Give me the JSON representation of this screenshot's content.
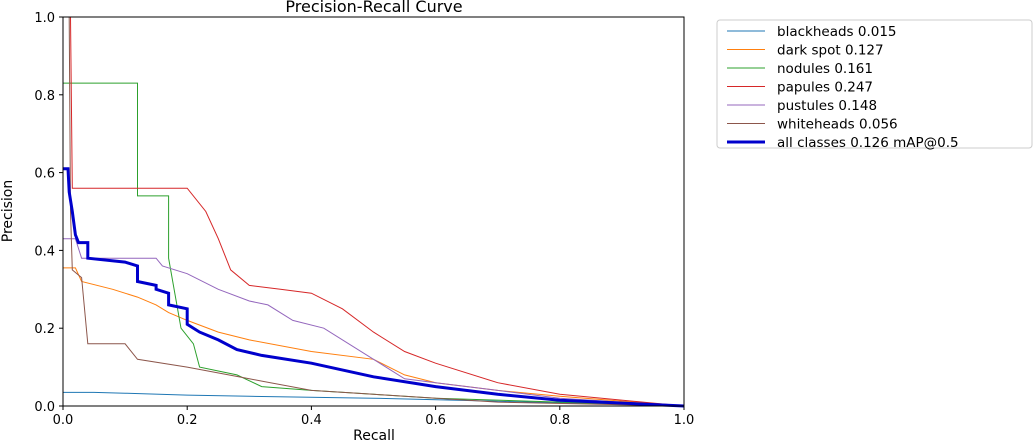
{
  "chart_data": {
    "type": "line",
    "title": "Precision-Recall Curve",
    "xlabel": "Recall",
    "ylabel": "Precision",
    "xlim": [
      0,
      1
    ],
    "ylim": [
      0,
      1
    ],
    "xticks": [
      "0.0",
      "0.2",
      "0.4",
      "0.6",
      "0.8",
      "1.0"
    ],
    "yticks": [
      "0.0",
      "0.2",
      "0.4",
      "0.6",
      "0.8",
      "1.0"
    ],
    "legend_position": "outside-top-right",
    "series": [
      {
        "name": "blackheads",
        "label": "blackheads 0.015",
        "color": "#1f77b4",
        "width": 1,
        "points": [
          [
            0,
            0.035
          ],
          [
            0.05,
            0.035
          ],
          [
            0.1,
            0.033
          ],
          [
            0.2,
            0.028
          ],
          [
            0.3,
            0.025
          ],
          [
            0.5,
            0.02
          ],
          [
            0.7,
            0.012
          ],
          [
            1.0,
            0.0
          ]
        ]
      },
      {
        "name": "dark spot",
        "label": "dark spot 0.127",
        "color": "#ff7f0e",
        "width": 1,
        "points": [
          [
            0,
            0.355
          ],
          [
            0.02,
            0.355
          ],
          [
            0.03,
            0.32
          ],
          [
            0.08,
            0.3
          ],
          [
            0.12,
            0.28
          ],
          [
            0.15,
            0.26
          ],
          [
            0.17,
            0.24
          ],
          [
            0.2,
            0.22
          ],
          [
            0.25,
            0.19
          ],
          [
            0.3,
            0.17
          ],
          [
            0.4,
            0.14
          ],
          [
            0.5,
            0.12
          ],
          [
            0.55,
            0.08
          ],
          [
            0.6,
            0.06
          ],
          [
            0.7,
            0.04
          ],
          [
            0.8,
            0.025
          ],
          [
            1.0,
            0.0
          ]
        ]
      },
      {
        "name": "nodules",
        "label": "nodules 0.161",
        "color": "#2ca02c",
        "width": 1,
        "points": [
          [
            0,
            0.83
          ],
          [
            0.12,
            0.83
          ],
          [
            0.12,
            0.54
          ],
          [
            0.17,
            0.54
          ],
          [
            0.17,
            0.38
          ],
          [
            0.19,
            0.2
          ],
          [
            0.21,
            0.16
          ],
          [
            0.22,
            0.1
          ],
          [
            0.25,
            0.09
          ],
          [
            0.28,
            0.08
          ],
          [
            0.32,
            0.05
          ],
          [
            0.4,
            0.04
          ],
          [
            0.5,
            0.03
          ],
          [
            0.6,
            0.02
          ],
          [
            0.8,
            0.01
          ],
          [
            1.0,
            0.0
          ]
        ]
      },
      {
        "name": "papules",
        "label": "papules 0.247",
        "color": "#d62728",
        "width": 1,
        "points": [
          [
            0.005,
            1.0
          ],
          [
            0.012,
            1.0
          ],
          [
            0.015,
            0.56
          ],
          [
            0.2,
            0.56
          ],
          [
            0.23,
            0.5
          ],
          [
            0.25,
            0.43
          ],
          [
            0.27,
            0.35
          ],
          [
            0.3,
            0.31
          ],
          [
            0.35,
            0.3
          ],
          [
            0.4,
            0.29
          ],
          [
            0.45,
            0.25
          ],
          [
            0.5,
            0.19
          ],
          [
            0.55,
            0.14
          ],
          [
            0.6,
            0.11
          ],
          [
            0.7,
            0.06
          ],
          [
            0.8,
            0.03
          ],
          [
            1.0,
            0.0
          ]
        ]
      },
      {
        "name": "pustules",
        "label": "pustules 0.148",
        "color": "#9467bd",
        "width": 1,
        "points": [
          [
            0,
            0.43
          ],
          [
            0.02,
            0.43
          ],
          [
            0.03,
            0.38
          ],
          [
            0.15,
            0.38
          ],
          [
            0.16,
            0.36
          ],
          [
            0.2,
            0.34
          ],
          [
            0.25,
            0.3
          ],
          [
            0.3,
            0.27
          ],
          [
            0.33,
            0.26
          ],
          [
            0.37,
            0.22
          ],
          [
            0.42,
            0.2
          ],
          [
            0.5,
            0.12
          ],
          [
            0.55,
            0.07
          ],
          [
            0.6,
            0.06
          ],
          [
            0.7,
            0.04
          ],
          [
            0.8,
            0.02
          ],
          [
            1.0,
            0.0
          ]
        ]
      },
      {
        "name": "whiteheads",
        "label": "whiteheads 0.056",
        "color": "#8c564b",
        "width": 1,
        "points": [
          [
            0.01,
            1.0
          ],
          [
            0.012,
            0.5
          ],
          [
            0.015,
            0.35
          ],
          [
            0.03,
            0.33
          ],
          [
            0.04,
            0.16
          ],
          [
            0.1,
            0.16
          ],
          [
            0.12,
            0.12
          ],
          [
            0.2,
            0.1
          ],
          [
            0.3,
            0.07
          ],
          [
            0.4,
            0.04
          ],
          [
            0.5,
            0.03
          ],
          [
            0.7,
            0.01
          ],
          [
            1.0,
            0.0
          ]
        ]
      },
      {
        "name": "all classes",
        "label": "all classes 0.126 mAP@0.5",
        "color": "#0000cc",
        "width": 3,
        "points": [
          [
            0,
            0.61
          ],
          [
            0.008,
            0.61
          ],
          [
            0.01,
            0.55
          ],
          [
            0.015,
            0.5
          ],
          [
            0.02,
            0.44
          ],
          [
            0.025,
            0.42
          ],
          [
            0.04,
            0.42
          ],
          [
            0.04,
            0.38
          ],
          [
            0.1,
            0.37
          ],
          [
            0.12,
            0.36
          ],
          [
            0.12,
            0.32
          ],
          [
            0.15,
            0.31
          ],
          [
            0.15,
            0.3
          ],
          [
            0.17,
            0.29
          ],
          [
            0.17,
            0.26
          ],
          [
            0.2,
            0.25
          ],
          [
            0.2,
            0.21
          ],
          [
            0.22,
            0.19
          ],
          [
            0.25,
            0.17
          ],
          [
            0.28,
            0.145
          ],
          [
            0.32,
            0.13
          ],
          [
            0.4,
            0.11
          ],
          [
            0.5,
            0.075
          ],
          [
            0.6,
            0.05
          ],
          [
            0.7,
            0.03
          ],
          [
            0.8,
            0.015
          ],
          [
            1.0,
            0.0
          ]
        ]
      }
    ]
  }
}
